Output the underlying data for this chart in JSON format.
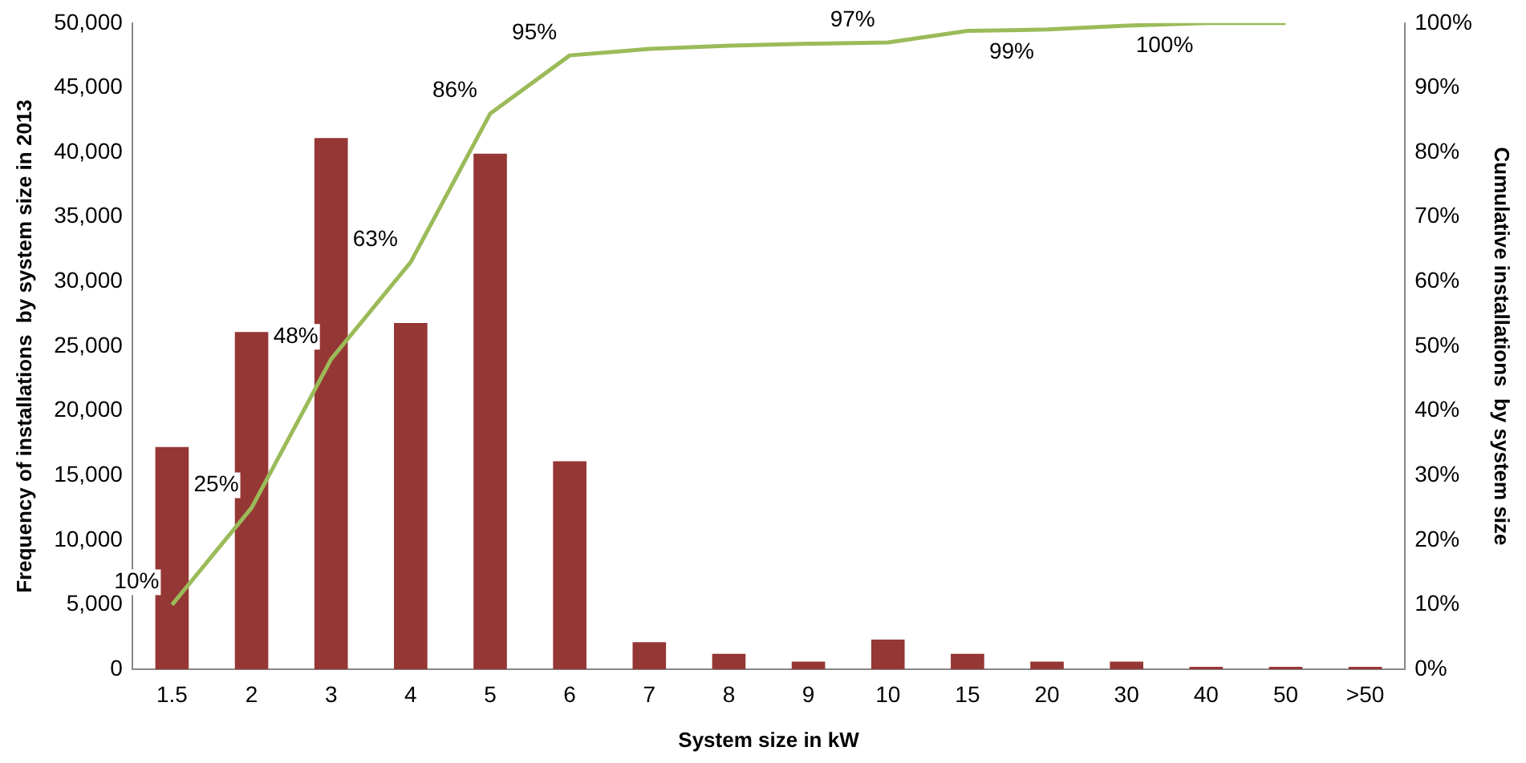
{
  "chart_data": {
    "type": "bar",
    "xlabel": "System size in kW",
    "ylabel": "Frequency of installations  by system size in 2013",
    "y2label": "Cumulative installations  by system size",
    "categories": [
      "1.5",
      "2",
      "3",
      "4",
      "5",
      "6",
      "7",
      "8",
      "9",
      "10",
      "15",
      "20",
      "30",
      "40",
      "50",
      ">50"
    ],
    "series": [
      {
        "color": "#953735",
        "values": [
          17200,
          26100,
          41100,
          26800,
          39900,
          16100,
          2100,
          1200,
          600,
          2300,
          1200,
          600,
          600,
          200,
          200,
          200
        ]
      },
      {
        "type": "line",
        "axis": "y2",
        "color": "#9bbb59",
        "values": [
          10,
          25,
          48,
          63,
          86,
          95,
          96,
          96.5,
          96.8,
          97,
          98.8,
          99,
          99.6,
          100,
          100,
          null
        ],
        "value_labels": [
          "10%",
          "25%",
          "48%",
          "63%",
          "86%",
          "95%",
          null,
          null,
          null,
          "97%",
          null,
          "99%",
          null,
          "100%",
          null,
          null
        ]
      }
    ],
    "ylim": [
      0,
      50000
    ],
    "yticks": [
      {
        "value": 0,
        "label": "0"
      },
      {
        "value": 5000,
        "label": "5,000"
      },
      {
        "value": 10000,
        "label": "10,000"
      },
      {
        "value": 15000,
        "label": "15,000"
      },
      {
        "value": 20000,
        "label": "20,000"
      },
      {
        "value": 25000,
        "label": "25,000"
      },
      {
        "value": 30000,
        "label": "30,000"
      },
      {
        "value": 35000,
        "label": "35,000"
      },
      {
        "value": 40000,
        "label": "40,000"
      },
      {
        "value": 45000,
        "label": "45,000"
      },
      {
        "value": 50000,
        "label": "50,000"
      }
    ],
    "y2lim": [
      0,
      100
    ],
    "y2ticks": [
      {
        "value": 0,
        "label": "0%"
      },
      {
        "value": 10,
        "label": "10%"
      },
      {
        "value": 20,
        "label": "20%"
      },
      {
        "value": 30,
        "label": "30%"
      },
      {
        "value": 40,
        "label": "40%"
      },
      {
        "value": 50,
        "label": "50%"
      },
      {
        "value": 60,
        "label": "60%"
      },
      {
        "value": 70,
        "label": "70%"
      },
      {
        "value": 80,
        "label": "80%"
      },
      {
        "value": 90,
        "label": "90%"
      },
      {
        "value": 100,
        "label": "100%"
      }
    ],
    "grid": false,
    "legend": false,
    "marker": "none"
  }
}
